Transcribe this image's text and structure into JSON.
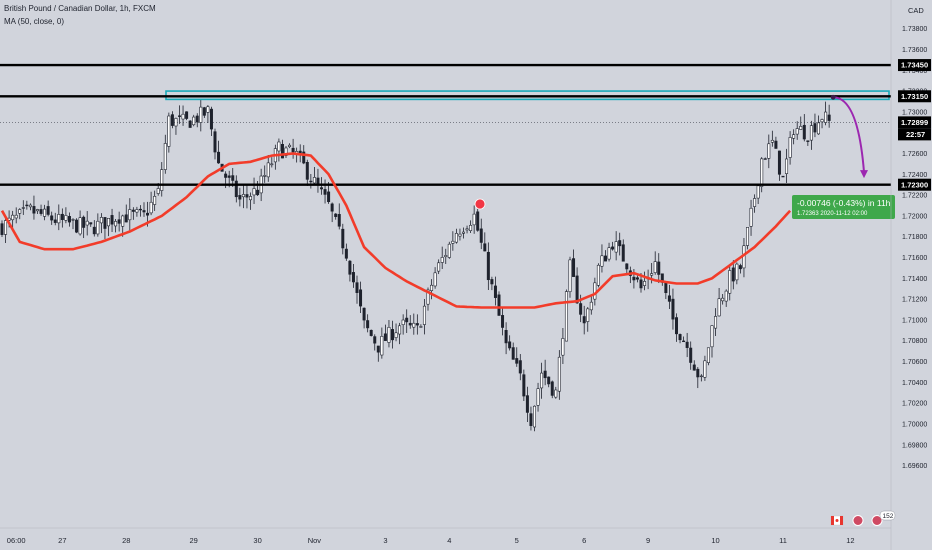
{
  "header": {
    "symbol_title": "British Pound / Canadian Dollar, 1h, FXCM",
    "indicator_title": "MA (50, close, 0)"
  },
  "axis": {
    "currency": "CAD"
  },
  "measure": {
    "text": "-0.00746 (-0.43%) in 11h",
    "detail": "1.72363  2020-11-12  02:00"
  },
  "badges": {
    "events_count": "152"
  },
  "colors": {
    "background": "#d1d4dc",
    "ma_line": "#f23c2a",
    "levels": "#000000",
    "zone_stroke": "#1aa9b8",
    "projection_arrow": "#9c27b0",
    "measure_box": "#3fa84b",
    "candles": "#1e222d"
  },
  "chart_data": {
    "type": "candlestick",
    "ylim": [
      1.69,
      1.7396
    ],
    "y_ticks": [
      1.696,
      1.698,
      1.7,
      1.702,
      1.704,
      1.706,
      1.708,
      1.71,
      1.712,
      1.714,
      1.716,
      1.718,
      1.72,
      1.722,
      1.724,
      1.726,
      1.728,
      1.73,
      1.732,
      1.734,
      1.736,
      1.738
    ],
    "y_tick_labels": [
      "1.69600",
      "1.69800",
      "1.70000",
      "1.70200",
      "1.70400",
      "1.70600",
      "1.70800",
      "1.71000",
      "1.71200",
      "1.71400",
      "1.71600",
      "1.71800",
      "1.72000",
      "1.72200",
      "1.72400",
      "1.72600",
      "1.72800",
      "1.73000",
      "1.73200",
      "1.73400",
      "1.73600",
      "1.73800"
    ],
    "x_ticks": [
      {
        "label": "06:00",
        "bar": 4
      },
      {
        "label": "27",
        "bar": 17
      },
      {
        "label": "28",
        "bar": 35
      },
      {
        "label": "29",
        "bar": 54
      },
      {
        "label": "30",
        "bar": 72
      },
      {
        "label": "Nov",
        "bar": 88
      },
      {
        "label": "3",
        "bar": 108
      },
      {
        "label": "4",
        "bar": 126
      },
      {
        "label": "5",
        "bar": 145
      },
      {
        "label": "6",
        "bar": 164
      },
      {
        "label": "9",
        "bar": 182
      },
      {
        "label": "10",
        "bar": 201
      },
      {
        "label": "11",
        "bar": 220
      },
      {
        "label": "12",
        "bar": 239
      }
    ],
    "horizontal_levels": [
      {
        "label": "1.73450",
        "value": 1.7345
      },
      {
        "label": "1.73150",
        "value": 1.7315
      },
      {
        "label": "1.72300",
        "value": 1.723
      }
    ],
    "current_price": {
      "label": "1.72899",
      "value": 1.72899,
      "countdown": "22:57"
    },
    "resistance_zone": {
      "from": 1.7312,
      "to": 1.732
    },
    "projection": {
      "from_value": 1.7314,
      "to_value": 1.72363
    },
    "close_anchors": [
      {
        "bar": 0,
        "close": 1.719
      },
      {
        "bar": 8,
        "close": 1.7205
      },
      {
        "bar": 16,
        "close": 1.7195
      },
      {
        "bar": 25,
        "close": 1.7188
      },
      {
        "bar": 33,
        "close": 1.72
      },
      {
        "bar": 40,
        "close": 1.72
      },
      {
        "bar": 44,
        "close": 1.7222
      },
      {
        "bar": 47,
        "close": 1.7292
      },
      {
        "bar": 52,
        "close": 1.729
      },
      {
        "bar": 58,
        "close": 1.73
      },
      {
        "bar": 61,
        "close": 1.725
      },
      {
        "bar": 67,
        "close": 1.7215
      },
      {
        "bar": 72,
        "close": 1.7225
      },
      {
        "bar": 78,
        "close": 1.7265
      },
      {
        "bar": 83,
        "close": 1.7258
      },
      {
        "bar": 88,
        "close": 1.7232
      },
      {
        "bar": 92,
        "close": 1.721
      },
      {
        "bar": 97,
        "close": 1.7165
      },
      {
        "bar": 102,
        "close": 1.7095
      },
      {
        "bar": 106,
        "close": 1.7075
      },
      {
        "bar": 112,
        "close": 1.7095
      },
      {
        "bar": 117,
        "close": 1.709
      },
      {
        "bar": 122,
        "close": 1.7145
      },
      {
        "bar": 128,
        "close": 1.7185
      },
      {
        "bar": 133,
        "close": 1.72
      },
      {
        "bar": 137,
        "close": 1.7145
      },
      {
        "bar": 142,
        "close": 1.7075
      },
      {
        "bar": 146,
        "close": 1.7045
      },
      {
        "bar": 149,
        "close": 1.7005
      },
      {
        "bar": 152,
        "close": 1.705
      },
      {
        "bar": 156,
        "close": 1.703
      },
      {
        "bar": 160,
        "close": 1.715
      },
      {
        "bar": 164,
        "close": 1.7095
      },
      {
        "bar": 168,
        "close": 1.715
      },
      {
        "bar": 172,
        "close": 1.7175
      },
      {
        "bar": 176,
        "close": 1.7155
      },
      {
        "bar": 180,
        "close": 1.713
      },
      {
        "bar": 184,
        "close": 1.7155
      },
      {
        "bar": 189,
        "close": 1.71
      },
      {
        "bar": 193,
        "close": 1.7075
      },
      {
        "bar": 197,
        "close": 1.704
      },
      {
        "bar": 201,
        "close": 1.711
      },
      {
        "bar": 205,
        "close": 1.714
      },
      {
        "bar": 208,
        "close": 1.715
      },
      {
        "bar": 211,
        "close": 1.72
      },
      {
        "bar": 214,
        "close": 1.7255
      },
      {
        "bar": 217,
        "close": 1.727
      },
      {
        "bar": 220,
        "close": 1.7235
      },
      {
        "bar": 223,
        "close": 1.7285
      },
      {
        "bar": 227,
        "close": 1.728
      },
      {
        "bar": 231,
        "close": 1.7296
      },
      {
        "bar": 233,
        "close": 1.729
      }
    ],
    "ma_anchors": [
      {
        "bar": 0,
        "value": 1.7205
      },
      {
        "bar": 5,
        "value": 1.7175
      },
      {
        "bar": 12,
        "value": 1.7168
      },
      {
        "bar": 20,
        "value": 1.7168
      },
      {
        "bar": 28,
        "value": 1.7175
      },
      {
        "bar": 36,
        "value": 1.7185
      },
      {
        "bar": 45,
        "value": 1.72
      },
      {
        "bar": 52,
        "value": 1.7218
      },
      {
        "bar": 58,
        "value": 1.7238
      },
      {
        "bar": 64,
        "value": 1.725
      },
      {
        "bar": 70,
        "value": 1.7252
      },
      {
        "bar": 76,
        "value": 1.7258
      },
      {
        "bar": 82,
        "value": 1.726
      },
      {
        "bar": 87,
        "value": 1.7258
      },
      {
        "bar": 92,
        "value": 1.724
      },
      {
        "bar": 97,
        "value": 1.721
      },
      {
        "bar": 102,
        "value": 1.717
      },
      {
        "bar": 108,
        "value": 1.715
      },
      {
        "bar": 114,
        "value": 1.7137
      },
      {
        "bar": 121,
        "value": 1.7125
      },
      {
        "bar": 128,
        "value": 1.7113
      },
      {
        "bar": 135,
        "value": 1.7112
      },
      {
        "bar": 142,
        "value": 1.7112
      },
      {
        "bar": 150,
        "value": 1.7112
      },
      {
        "bar": 156,
        "value": 1.7116
      },
      {
        "bar": 162,
        "value": 1.7118
      },
      {
        "bar": 167,
        "value": 1.7125
      },
      {
        "bar": 172,
        "value": 1.7142
      },
      {
        "bar": 178,
        "value": 1.7145
      },
      {
        "bar": 184,
        "value": 1.7138
      },
      {
        "bar": 190,
        "value": 1.7135
      },
      {
        "bar": 196,
        "value": 1.7135
      },
      {
        "bar": 200,
        "value": 1.714
      },
      {
        "bar": 206,
        "value": 1.7155
      },
      {
        "bar": 212,
        "value": 1.717
      },
      {
        "bar": 218,
        "value": 1.719
      },
      {
        "bar": 222,
        "value": 1.7205
      }
    ],
    "bar_count": 234,
    "grid": false,
    "ma_label": "MA (50, close, 0)",
    "y_axis_side": "right"
  }
}
